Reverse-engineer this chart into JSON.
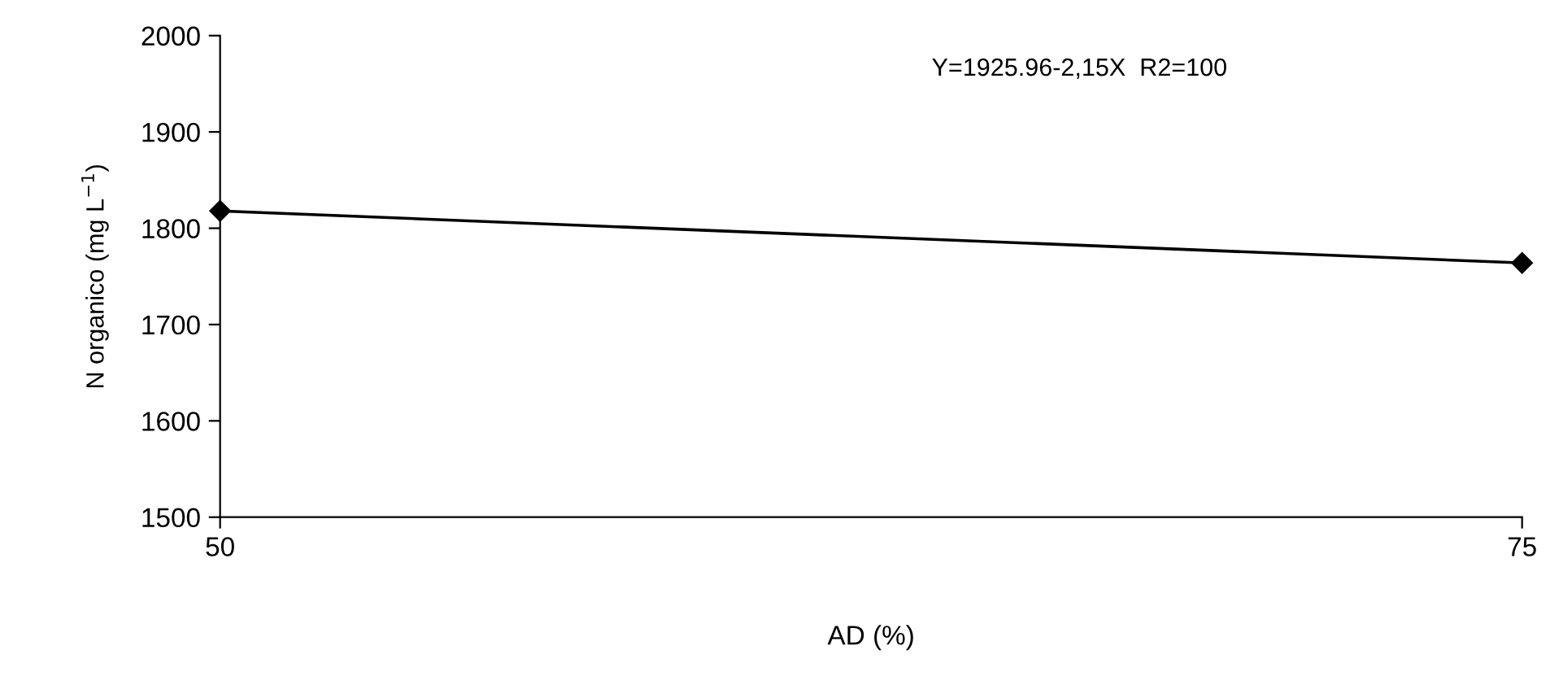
{
  "chart_data": {
    "type": "line",
    "x": [
      50,
      75
    ],
    "series": [
      {
        "color": "#000000",
        "values": [
          1818,
          1764
        ]
      }
    ],
    "xlabel": "AD (%)",
    "ylabel": "N organico (mg L$^{−1}$)",
    "annotations": [
      "Y=1925.96-2,15X  R2=100"
    ],
    "xlim": [
      50,
      75
    ],
    "xticks": [
      50,
      75
    ],
    "ylim": [
      1500,
      2000
    ],
    "yticks": [
      1500,
      1600,
      1700,
      1800,
      1900,
      2000
    ],
    "marker": "diamond",
    "line_style": "solid",
    "grid": false,
    "legend": false
  }
}
